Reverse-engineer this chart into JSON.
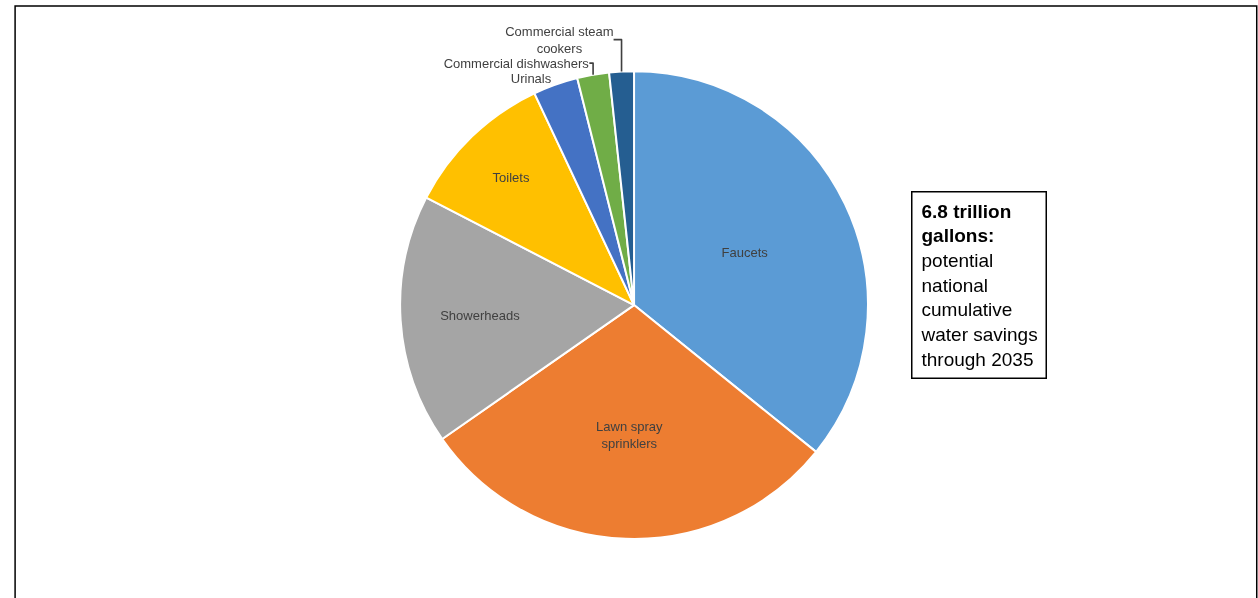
{
  "chart_data": {
    "type": "pie",
    "categories": [
      "Faucets",
      "Lawn spray sprinklers",
      "Showerheads",
      "Toilets",
      "Urinals",
      "Commercial dishwashers",
      "Commercial steam cookers"
    ],
    "values": [
      35.8,
      29.5,
      17.3,
      10.4,
      3.1,
      2.2,
      1.7
    ],
    "colors": [
      "#5b9bd5",
      "#ed7d31",
      "#a5a5a5",
      "#ffc000",
      "#4472c4",
      "#70ad47",
      "#255e91"
    ],
    "annotations": [
      "6.8 trillion gallons:",
      "potential national cumulative water savings through 2035"
    ],
    "legend": false
  }
}
